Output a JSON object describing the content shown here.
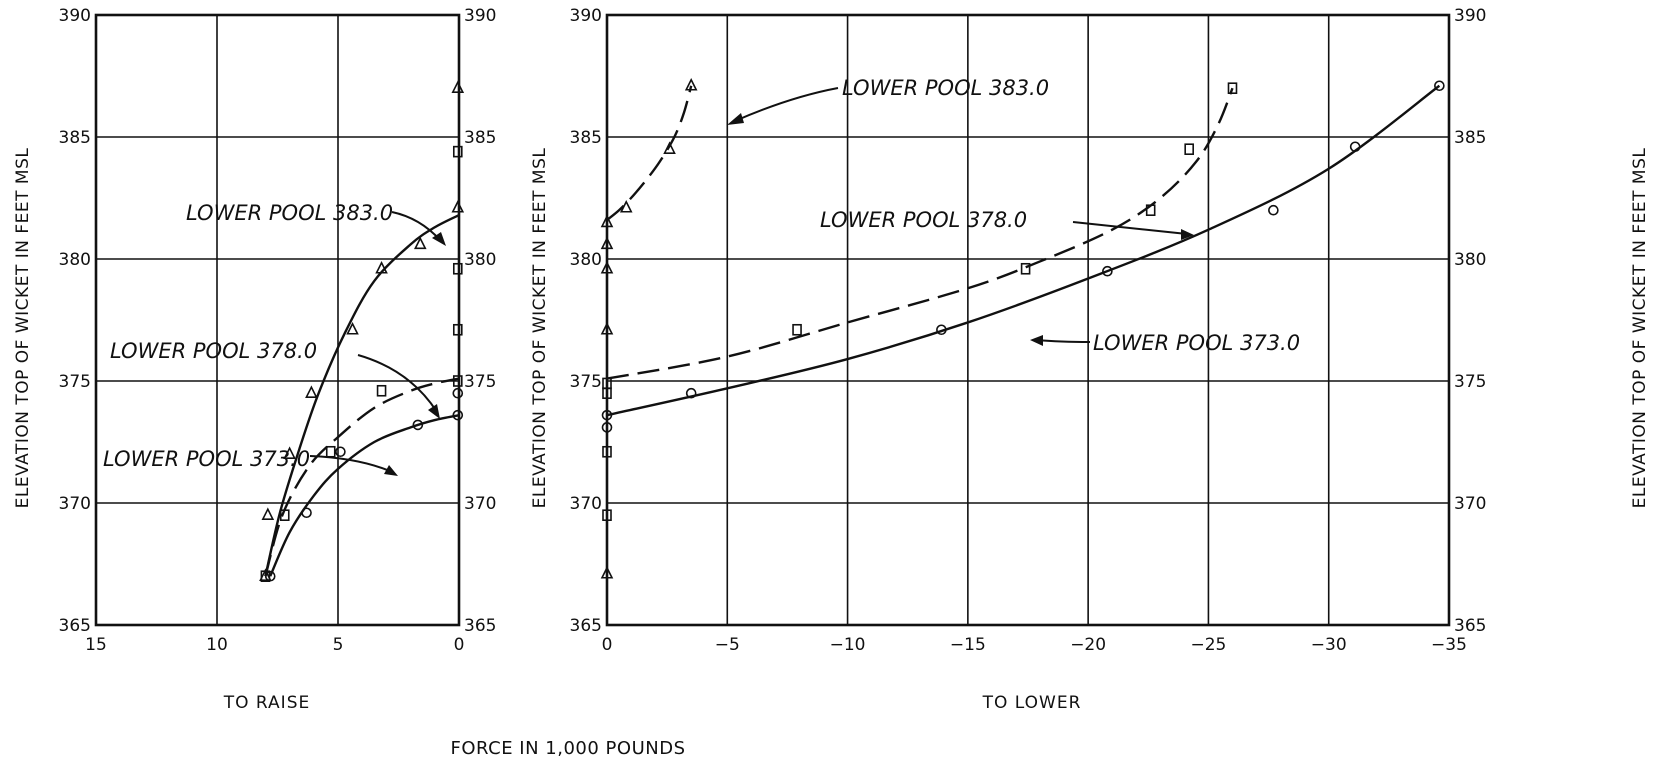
{
  "chart_data": [
    {
      "panel": "raise",
      "type": "scatter",
      "xlabel": "TO  RAISE",
      "ylabel_left": "ELEVATION TOP OF WICKET IN FEET MSL",
      "xlim": [
        15,
        0
      ],
      "ylim": [
        365,
        390
      ],
      "xticks": [
        "15",
        "10",
        "5",
        "0"
      ],
      "yticks": [
        "365",
        "370",
        "375",
        "380",
        "385",
        "390"
      ],
      "grid": true,
      "series": [
        {
          "name": "LOWER POOL 383.0",
          "marker": "triangle",
          "line": "solid",
          "points": [
            [
              8.0,
              367.0
            ],
            [
              7.9,
              369.5
            ],
            [
              7.0,
              372.0
            ],
            [
              6.1,
              374.5
            ],
            [
              4.4,
              377.1
            ],
            [
              3.2,
              379.6
            ],
            [
              1.6,
              380.6
            ],
            [
              0.05,
              382.1
            ],
            [
              0.05,
              387.0
            ]
          ],
          "curve": [
            [
              8.0,
              367.0
            ],
            [
              7.4,
              369.6
            ],
            [
              6.6,
              372.2
            ],
            [
              5.8,
              374.5
            ],
            [
              4.7,
              377.0
            ],
            [
              3.5,
              379.1
            ],
            [
              2.0,
              380.6
            ],
            [
              1.0,
              381.3
            ],
            [
              0.0,
              381.8
            ]
          ]
        },
        {
          "name": "LOWER POOL 378.0",
          "marker": "square",
          "line": "dashed",
          "points": [
            [
              8.0,
              367.0
            ],
            [
              7.2,
              369.5
            ],
            [
              5.3,
              372.1
            ],
            [
              3.2,
              374.6
            ],
            [
              0.05,
              375.0
            ],
            [
              0.05,
              377.1
            ],
            [
              0.05,
              379.6
            ],
            [
              0.05,
              384.4
            ]
          ],
          "curve": [
            [
              8.0,
              367.0
            ],
            [
              7.3,
              369.5
            ],
            [
              6.2,
              371.5
            ],
            [
              5.0,
              372.7
            ],
            [
              3.5,
              373.9
            ],
            [
              2.0,
              374.6
            ],
            [
              1.0,
              374.9
            ],
            [
              0.0,
              375.1
            ]
          ]
        },
        {
          "name": "LOWER POOL 373.0",
          "marker": "circle",
          "line": "solid",
          "points": [
            [
              7.8,
              367.0
            ],
            [
              6.3,
              369.6
            ],
            [
              4.9,
              372.1
            ],
            [
              1.7,
              373.2
            ],
            [
              0.05,
              373.6
            ],
            [
              0.05,
              374.5
            ]
          ],
          "curve": [
            [
              7.8,
              367.0
            ],
            [
              7.0,
              368.8
            ],
            [
              6.0,
              370.3
            ],
            [
              5.0,
              371.4
            ],
            [
              3.5,
              372.5
            ],
            [
              2.0,
              373.1
            ],
            [
              1.0,
              373.4
            ],
            [
              0.0,
              373.6
            ]
          ]
        }
      ],
      "annotations": [
        {
          "text": "LOWER POOL 383.0",
          "series": "LOWER POOL 383.0"
        },
        {
          "text": "LOWER POOL 378.0",
          "series": "LOWER POOL 378.0"
        },
        {
          "text": "LOWER POOL 373.0",
          "series": "LOWER POOL 373.0"
        }
      ]
    },
    {
      "panel": "lower",
      "type": "scatter",
      "xlabel": "TO LOWER",
      "ylabel_left": "ELEVATION TOP OF WICKET IN FEET MSL",
      "ylabel_right": "ELEVATION TOP OF WICKET IN FEET MSL",
      "xlim": [
        0,
        -35
      ],
      "ylim": [
        365,
        390
      ],
      "xticks": [
        "0",
        "−5",
        "−10",
        "−15",
        "−20",
        "−25",
        "−30",
        "−35"
      ],
      "yticks": [
        "365",
        "370",
        "375",
        "380",
        "385",
        "390"
      ],
      "grid": true,
      "series": [
        {
          "name": "LOWER POOL 383.0",
          "marker": "triangle",
          "line": "dashed",
          "points": [
            [
              0.0,
              367.1
            ],
            [
              0.0,
              377.1
            ],
            [
              0.0,
              379.6
            ],
            [
              0.0,
              380.6
            ],
            [
              0.0,
              381.5
            ],
            [
              -0.8,
              382.1
            ],
            [
              -2.6,
              384.5
            ],
            [
              -3.5,
              387.1
            ]
          ],
          "curve": [
            [
              0.0,
              381.6
            ],
            [
              -0.5,
              382.0
            ],
            [
              -1.0,
              382.5
            ],
            [
              -1.6,
              383.2
            ],
            [
              -2.2,
              384.0
            ],
            [
              -2.8,
              385.0
            ],
            [
              -3.2,
              386.0
            ],
            [
              -3.5,
              387.1
            ]
          ]
        },
        {
          "name": "LOWER POOL 378.0",
          "marker": "square",
          "line": "dashed",
          "points": [
            [
              0.0,
              369.5
            ],
            [
              0.0,
              372.1
            ],
            [
              0.0,
              374.5
            ],
            [
              0.0,
              374.9
            ],
            [
              -7.9,
              377.1
            ],
            [
              -17.4,
              379.6
            ],
            [
              -22.6,
              382.0
            ],
            [
              -24.2,
              384.5
            ],
            [
              -26.0,
              387.0
            ]
          ],
          "curve": [
            [
              0.0,
              375.1
            ],
            [
              -5.0,
              376.0
            ],
            [
              -10.0,
              377.4
            ],
            [
              -15.0,
              378.8
            ],
            [
              -18.0,
              379.9
            ],
            [
              -21.0,
              381.2
            ],
            [
              -23.0,
              382.5
            ],
            [
              -24.5,
              384.0
            ],
            [
              -25.4,
              385.5
            ],
            [
              -26.0,
              387.0
            ]
          ]
        },
        {
          "name": "LOWER POOL 373.0",
          "marker": "circle",
          "line": "solid",
          "points": [
            [
              0.0,
              373.1
            ],
            [
              0.0,
              373.6
            ],
            [
              -3.5,
              374.5
            ],
            [
              -13.9,
              377.1
            ],
            [
              -20.8,
              379.5
            ],
            [
              -27.7,
              382.0
            ],
            [
              -31.1,
              384.6
            ],
            [
              -34.6,
              387.1
            ]
          ],
          "curve": [
            [
              0.0,
              373.6
            ],
            [
              -5.0,
              374.7
            ],
            [
              -10.0,
              375.9
            ],
            [
              -15.0,
              377.4
            ],
            [
              -20.0,
              379.2
            ],
            [
              -25.0,
              381.2
            ],
            [
              -30.0,
              383.7
            ],
            [
              -34.6,
              387.1
            ]
          ]
        }
      ],
      "annotations": [
        {
          "text": "LOWER POOL 383.0",
          "series": "LOWER POOL 383.0"
        },
        {
          "text": "LOWER  POOL 378.0",
          "series": "LOWER POOL 378.0"
        },
        {
          "text": "LOWER  POOL  373.0",
          "series": "LOWER POOL 373.0"
        }
      ]
    }
  ],
  "footer": "FORCE IN 1,000 POUNDS"
}
